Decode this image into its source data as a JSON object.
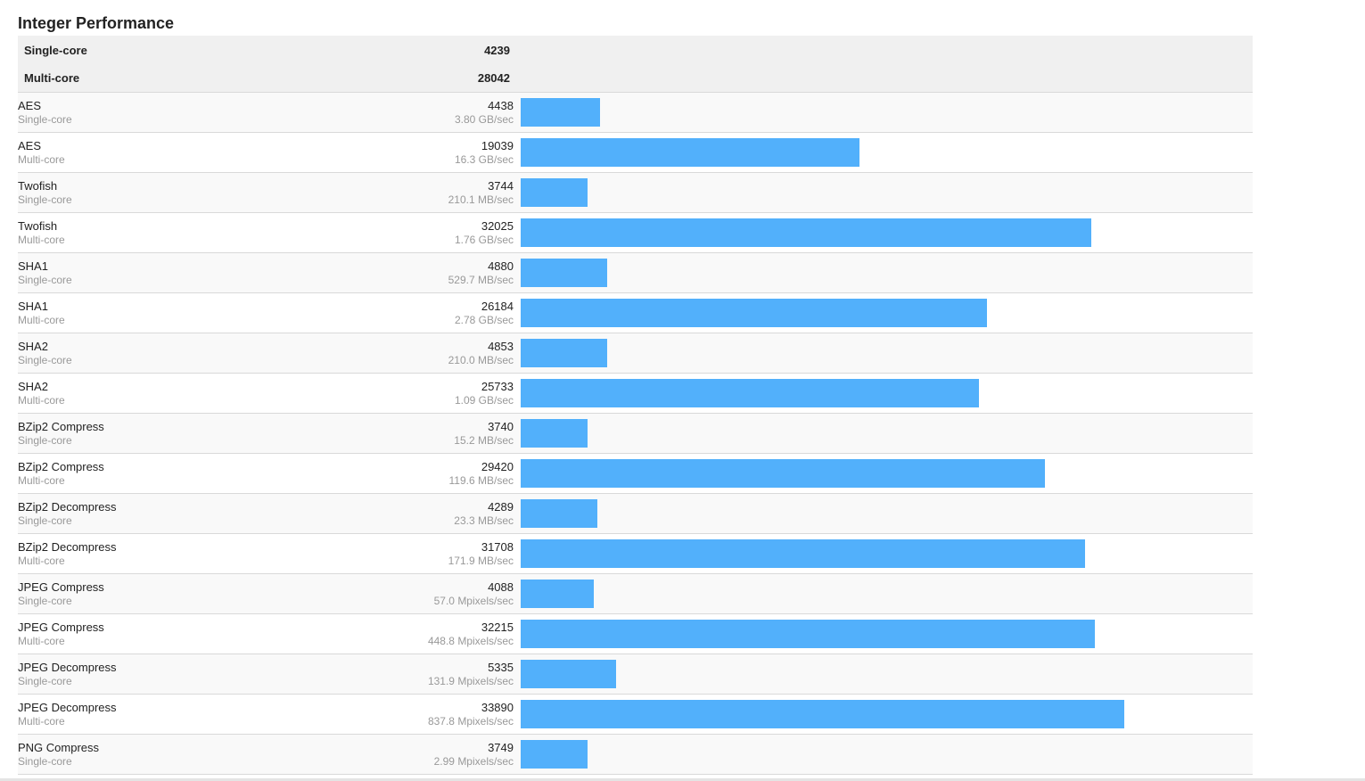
{
  "section_title": "Integer Performance",
  "summary": [
    {
      "label": "Single-core",
      "score": "4239"
    },
    {
      "label": "Multi-core",
      "score": "28042"
    }
  ],
  "bar_color": "#52b0fb",
  "chart_data": {
    "type": "bar",
    "orientation": "horizontal",
    "title": "Integer Performance",
    "categories": [
      "AES Single-core",
      "AES Multi-core",
      "Twofish Single-core",
      "Twofish Multi-core",
      "SHA1 Single-core",
      "SHA1 Multi-core",
      "SHA2 Single-core",
      "SHA2 Multi-core",
      "BZip2 Compress Single-core",
      "BZip2 Compress Multi-core",
      "BZip2 Decompress Single-core",
      "BZip2 Decompress Multi-core",
      "JPEG Compress Single-core",
      "JPEG Compress Multi-core",
      "JPEG Decompress Single-core",
      "JPEG Decompress Multi-core",
      "PNG Compress Single-core"
    ],
    "values": [
      4438,
      19039,
      3744,
      32025,
      4880,
      26184,
      4853,
      25733,
      3740,
      29420,
      4289,
      31708,
      4088,
      32215,
      5335,
      33890,
      3749
    ],
    "xlim": [
      0,
      41100
    ]
  },
  "workloads": [
    {
      "name": "AES",
      "mode": "Single-core",
      "score": "4438",
      "rate": "3.80 GB/sec",
      "value": 4438
    },
    {
      "name": "AES",
      "mode": "Multi-core",
      "score": "19039",
      "rate": "16.3 GB/sec",
      "value": 19039
    },
    {
      "name": "Twofish",
      "mode": "Single-core",
      "score": "3744",
      "rate": "210.1 MB/sec",
      "value": 3744
    },
    {
      "name": "Twofish",
      "mode": "Multi-core",
      "score": "32025",
      "rate": "1.76 GB/sec",
      "value": 32025
    },
    {
      "name": "SHA1",
      "mode": "Single-core",
      "score": "4880",
      "rate": "529.7 MB/sec",
      "value": 4880
    },
    {
      "name": "SHA1",
      "mode": "Multi-core",
      "score": "26184",
      "rate": "2.78 GB/sec",
      "value": 26184
    },
    {
      "name": "SHA2",
      "mode": "Single-core",
      "score": "4853",
      "rate": "210.0 MB/sec",
      "value": 4853
    },
    {
      "name": "SHA2",
      "mode": "Multi-core",
      "score": "25733",
      "rate": "1.09 GB/sec",
      "value": 25733
    },
    {
      "name": "BZip2 Compress",
      "mode": "Single-core",
      "score": "3740",
      "rate": "15.2 MB/sec",
      "value": 3740
    },
    {
      "name": "BZip2 Compress",
      "mode": "Multi-core",
      "score": "29420",
      "rate": "119.6 MB/sec",
      "value": 29420
    },
    {
      "name": "BZip2 Decompress",
      "mode": "Single-core",
      "score": "4289",
      "rate": "23.3 MB/sec",
      "value": 4289
    },
    {
      "name": "BZip2 Decompress",
      "mode": "Multi-core",
      "score": "31708",
      "rate": "171.9 MB/sec",
      "value": 31708
    },
    {
      "name": "JPEG Compress",
      "mode": "Single-core",
      "score": "4088",
      "rate": "57.0 Mpixels/sec",
      "value": 4088
    },
    {
      "name": "JPEG Compress",
      "mode": "Multi-core",
      "score": "32215",
      "rate": "448.8 Mpixels/sec",
      "value": 32215
    },
    {
      "name": "JPEG Decompress",
      "mode": "Single-core",
      "score": "5335",
      "rate": "131.9 Mpixels/sec",
      "value": 5335
    },
    {
      "name": "JPEG Decompress",
      "mode": "Multi-core",
      "score": "33890",
      "rate": "837.8 Mpixels/sec",
      "value": 33890
    },
    {
      "name": "PNG Compress",
      "mode": "Single-core",
      "score": "3749",
      "rate": "2.99 Mpixels/sec",
      "value": 3749
    }
  ]
}
